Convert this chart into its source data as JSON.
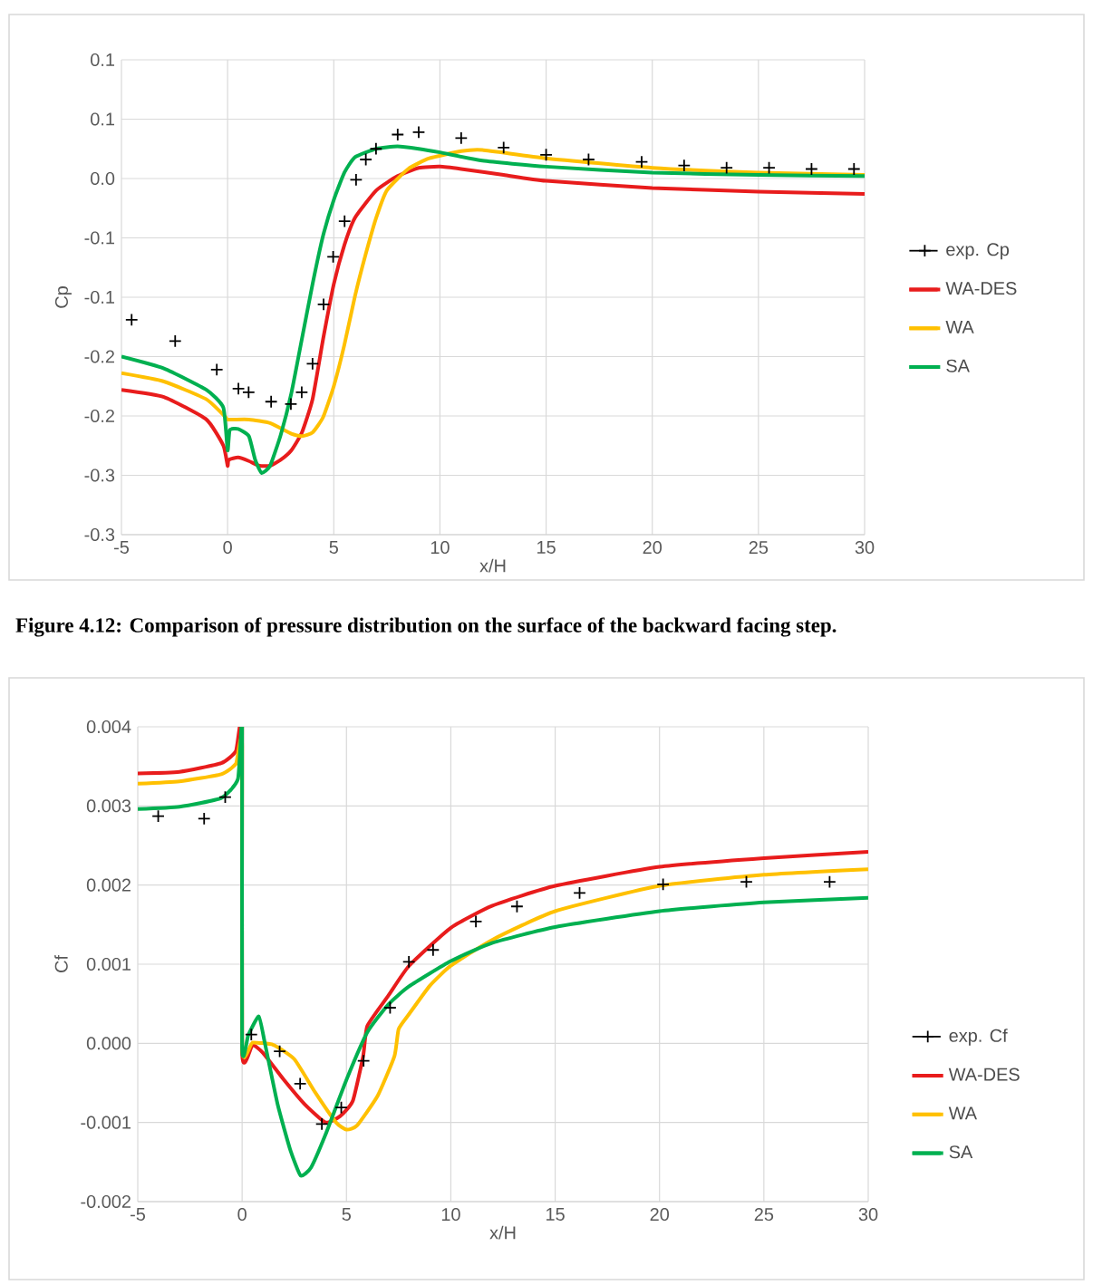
{
  "chart_data": [
    {
      "type": "line",
      "xlabel": "x/H",
      "ylabel": "Cp",
      "xlim": [
        -5,
        30
      ],
      "ylim": [
        -0.3,
        0.1
      ],
      "xticks": [
        -5,
        0,
        5,
        10,
        15,
        20,
        25,
        30
      ],
      "yticks": [
        {
          "value": -0.3,
          "label": "-0.3"
        },
        {
          "value": -0.25,
          "label": "-0.3"
        },
        {
          "value": -0.2,
          "label": "-0.2"
        },
        {
          "value": -0.15,
          "label": "-0.2"
        },
        {
          "value": -0.1,
          "label": "-0.1"
        },
        {
          "value": -0.05,
          "label": "-0.1"
        },
        {
          "value": 0,
          "label": "0.0"
        },
        {
          "value": 0.05,
          "label": "0.1"
        },
        {
          "value": 0.1,
          "label": "0.1"
        }
      ],
      "grid": true,
      "legend": "right",
      "annotations": [
        "Figure 4.12: Comparison of pressure distribution on the surface of the backward facing step."
      ],
      "series": [
        {
          "name": "exp. Cp",
          "type": "scatter",
          "marker": "cross",
          "color": "#000000",
          "x": [
            -4.52,
            -2.47,
            -0.51,
            0.51,
            0.99,
            2.05,
            2.98,
            3.49,
            4.0,
            4.52,
            4.97,
            5.51,
            6.05,
            6.51,
            6.99,
            8.01,
            9.0,
            11.0,
            13.0,
            15.0,
            17.0,
            19.5,
            21.5,
            23.5,
            25.5,
            27.5,
            29.5
          ],
          "values": [
            -0.119,
            -0.137,
            -0.161,
            -0.177,
            -0.18,
            -0.188,
            -0.19,
            -0.18,
            -0.156,
            -0.106,
            -0.066,
            -0.036,
            -0.001,
            0.016,
            0.025,
            0.037,
            0.039,
            0.034,
            0.026,
            0.02,
            0.016,
            0.014,
            0.011,
            0.009,
            0.009,
            0.008,
            0.008
          ]
        },
        {
          "name": "WA-DES",
          "type": "line",
          "color": "#e81c1c",
          "x": [
            -5,
            -3,
            -1,
            -0.2,
            0,
            0.05,
            0.5,
            1,
            1.5,
            2,
            2.5,
            3,
            3.5,
            4,
            4.5,
            5,
            5.5,
            6,
            7,
            8,
            9,
            10,
            11,
            13,
            15,
            20,
            25,
            30
          ],
          "values": [
            -0.178,
            -0.184,
            -0.203,
            -0.225,
            -0.242,
            -0.237,
            -0.235,
            -0.238,
            -0.242,
            -0.242,
            -0.237,
            -0.229,
            -0.214,
            -0.186,
            -0.135,
            -0.089,
            -0.056,
            -0.033,
            -0.01,
            0.002,
            0.009,
            0.01,
            0.008,
            0.003,
            -0.002,
            -0.008,
            -0.011,
            -0.013
          ]
        },
        {
          "name": "WA",
          "type": "line",
          "color": "#ffc000",
          "x": [
            -5,
            -3,
            -1,
            -0.1,
            0,
            1,
            2,
            3,
            3.5,
            4,
            4.5,
            5,
            5.5,
            6,
            6.5,
            7,
            7.5,
            8.5,
            9.5,
            11,
            12,
            15,
            20,
            25,
            30
          ],
          "values": [
            -0.164,
            -0.171,
            -0.186,
            -0.201,
            -0.203,
            -0.203,
            -0.206,
            -0.215,
            -0.217,
            -0.214,
            -0.201,
            -0.175,
            -0.14,
            -0.099,
            -0.064,
            -0.033,
            -0.01,
            0.008,
            0.017,
            0.023,
            0.024,
            0.017,
            0.009,
            0.005,
            0.003
          ]
        },
        {
          "name": "SA",
          "type": "line",
          "color": "#00b050",
          "x": [
            -5,
            -3,
            -1,
            -0.2,
            0,
            0.1,
            0.5,
            1,
            1.3,
            1.6,
            2,
            2.5,
            3,
            3.5,
            4,
            4.5,
            5,
            5.5,
            6,
            7,
            8,
            9,
            10,
            12,
            15,
            20,
            25,
            30
          ],
          "values": [
            -0.15,
            -0.16,
            -0.178,
            -0.193,
            -0.229,
            -0.212,
            -0.211,
            -0.217,
            -0.237,
            -0.248,
            -0.242,
            -0.216,
            -0.181,
            -0.135,
            -0.089,
            -0.048,
            -0.018,
            0.005,
            0.018,
            0.025,
            0.027,
            0.025,
            0.022,
            0.015,
            0.01,
            0.005,
            0.003,
            0.002
          ]
        }
      ]
    },
    {
      "type": "line",
      "xlabel": "x/H",
      "ylabel": "Cf",
      "xlim": [
        -5,
        30
      ],
      "ylim": [
        -0.002,
        0.004
      ],
      "xticks": [
        -5,
        0,
        5,
        10,
        15,
        20,
        25,
        30
      ],
      "yticks": [
        {
          "value": -0.002,
          "label": "-0.002"
        },
        {
          "value": -0.001,
          "label": "-0.001"
        },
        {
          "value": 0,
          "label": "0.000"
        },
        0.001,
        0.002,
        0.003,
        0.004
      ],
      "grid": true,
      "legend": "right",
      "series": [
        {
          "name": "exp. Cf",
          "type": "scatter",
          "marker": "cross",
          "color": "#000000",
          "x": [
            -4.02,
            -1.82,
            -0.81,
            0.44,
            1.8,
            2.78,
            3.82,
            4.75,
            5.82,
            7.09,
            7.99,
            9.15,
            11.2,
            13.17,
            16.17,
            20.17,
            24.16,
            28.15
          ],
          "values": [
            0.00287,
            0.00284,
            0.00311,
            0.00011,
            -0.0001,
            -0.00051,
            -0.00102,
            -0.00081,
            -0.00022,
            0.00045,
            0.00103,
            0.00118,
            0.00154,
            0.00173,
            0.0019,
            0.00201,
            0.00204,
            0.00204
          ]
        },
        {
          "name": "WA-DES",
          "type": "line",
          "color": "#e81c1c",
          "x": [
            -5,
            -3,
            -1,
            -0.3,
            0,
            0,
            0.5,
            1,
            2,
            3,
            4,
            4.7,
            5.3,
            5.8,
            6,
            7,
            8,
            10,
            12,
            15,
            20,
            25,
            30
          ],
          "values": [
            0.00341,
            0.00343,
            0.00354,
            0.00369,
            0.004,
            -0.00012,
            -2e-05,
            -0.00012,
            -0.00046,
            -0.00077,
            -0.001,
            -0.00092,
            -0.00073,
            -0.00016,
            0.00022,
            0.0006,
            0.00098,
            0.00146,
            0.00174,
            0.00199,
            0.00223,
            0.00234,
            0.00242
          ]
        },
        {
          "name": "WA",
          "type": "line",
          "color": "#ffc000",
          "x": [
            -5,
            -3,
            -1,
            -0.3,
            0,
            0,
            0.5,
            1.5,
            2.5,
            3.5,
            4.5,
            5,
            5.5,
            6.5,
            7.3,
            7.5,
            8,
            9,
            10,
            12,
            15,
            20,
            25,
            30
          ],
          "values": [
            0.00328,
            0.00331,
            0.0034,
            0.00353,
            0.00376,
            -5e-05,
            1e-05,
            -2e-05,
            -0.0002,
            -0.00062,
            -0.001,
            -0.00109,
            -0.00104,
            -0.00066,
            -0.00016,
            0.00018,
            0.00037,
            0.00073,
            0.00098,
            0.00131,
            0.00167,
            0.00199,
            0.00213,
            0.0022
          ]
        },
        {
          "name": "SA",
          "type": "line",
          "color": "#00b050",
          "x": [
            -5,
            -3,
            -1,
            -0.2,
            0,
            0,
            0.3,
            0.8,
            1.1,
            1.7,
            2.3,
            2.8,
            3.3,
            4,
            5,
            6,
            7,
            8,
            10,
            12,
            15,
            20,
            25,
            30
          ],
          "values": [
            0.00296,
            0.00299,
            0.0031,
            0.00334,
            0.004,
            -5e-05,
            0.00011,
            0.00034,
            -1e-05,
            -0.00077,
            -0.00134,
            -0.00167,
            -0.00157,
            -0.00115,
            -0.00046,
            0.00014,
            0.00049,
            0.00072,
            0.00104,
            0.00127,
            0.00147,
            0.00167,
            0.00178,
            0.00184
          ]
        }
      ]
    }
  ]
}
